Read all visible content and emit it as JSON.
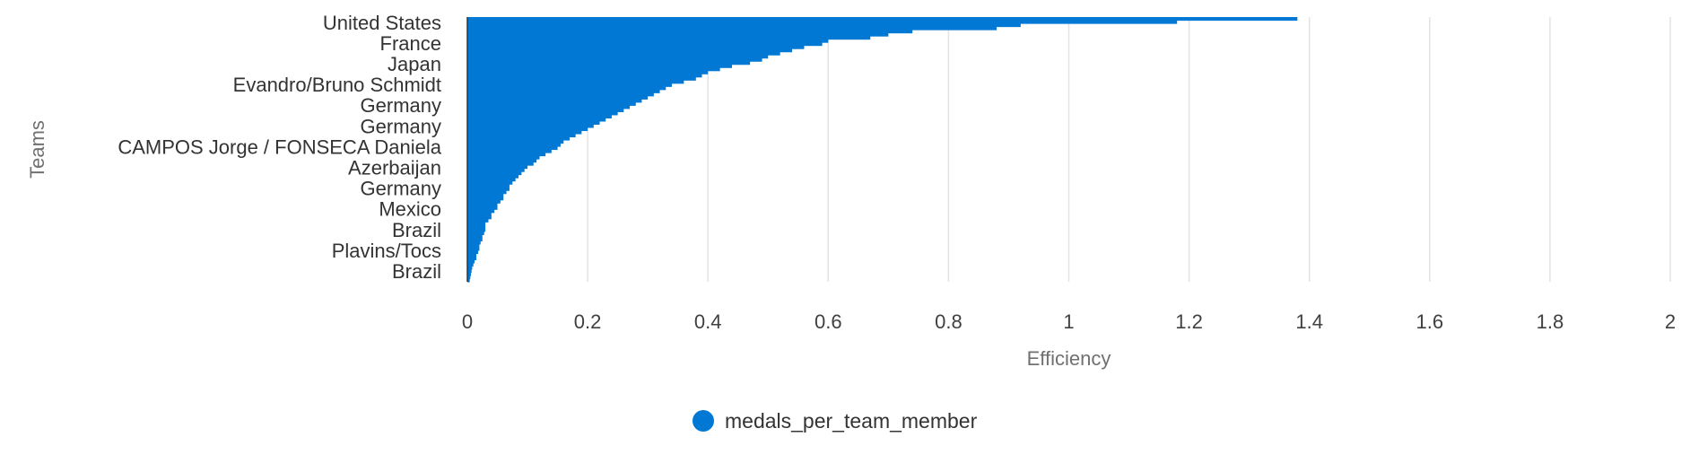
{
  "chart_data": {
    "type": "bar",
    "orientation": "horizontal",
    "xlabel": "Efficiency",
    "ylabel": "Teams",
    "xlim": [
      0,
      2
    ],
    "xticks": [
      0,
      0.2,
      0.4,
      0.6,
      0.8,
      1,
      1.2,
      1.4,
      1.6,
      1.8,
      2
    ],
    "xtick_labels": [
      "0",
      "0.2",
      "0.4",
      "0.6",
      "0.8",
      "1",
      "1.2",
      "1.4",
      "1.6",
      "1.8",
      "2"
    ],
    "grid": "vertical",
    "legend_position": "bottom",
    "bar_color": "#0078d4",
    "categories_shown": [
      "United States",
      "France",
      "Japan",
      "Evandro/Bruno Schmidt",
      "Germany",
      "Germany",
      "CAMPOS Jorge / FONSECA Daniela",
      "Azerbaijan",
      "Germany",
      "Mexico",
      "Brazil",
      "Plavins/Tocs",
      "Brazil"
    ],
    "series": [
      {
        "name": "medals_per_team_member",
        "values": [
          1.38,
          1.18,
          0.92,
          0.88,
          0.74,
          0.7,
          0.67,
          0.6,
          0.59,
          0.56,
          0.54,
          0.52,
          0.5,
          0.49,
          0.47,
          0.44,
          0.42,
          0.4,
          0.39,
          0.38,
          0.36,
          0.34,
          0.33,
          0.32,
          0.31,
          0.3,
          0.29,
          0.28,
          0.27,
          0.26,
          0.25,
          0.24,
          0.23,
          0.22,
          0.21,
          0.2,
          0.19,
          0.18,
          0.17,
          0.16,
          0.155,
          0.15,
          0.14,
          0.13,
          0.12,
          0.115,
          0.11,
          0.1,
          0.095,
          0.09,
          0.085,
          0.08,
          0.075,
          0.07,
          0.07,
          0.065,
          0.06,
          0.06,
          0.055,
          0.05,
          0.05,
          0.045,
          0.04,
          0.04,
          0.035,
          0.03,
          0.03,
          0.03,
          0.028,
          0.025,
          0.025,
          0.022,
          0.02,
          0.02,
          0.018,
          0.015,
          0.015,
          0.012,
          0.01,
          0.008,
          0.007,
          0.006,
          0.005,
          0.004
        ]
      }
    ]
  }
}
